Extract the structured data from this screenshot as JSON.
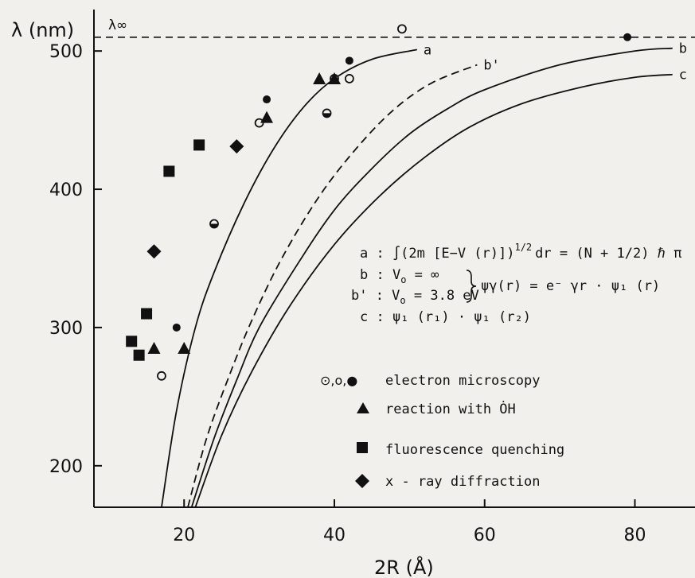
{
  "chart_data": {
    "type": "scatter",
    "xlabel": "2R (Å)",
    "ylabel": "λ (nm)",
    "xlim": [
      8,
      88
    ],
    "ylim": [
      170,
      530
    ],
    "x_ticks": [
      20,
      40,
      60,
      80
    ],
    "y_ticks": [
      200,
      300,
      400,
      500
    ],
    "asymptote": {
      "label": "λ∞",
      "value": 510
    },
    "curves": [
      {
        "label": "a",
        "style": "solid",
        "points": [
          [
            17,
            170
          ],
          [
            19,
            240
          ],
          [
            21.5,
            300
          ],
          [
            24,
            340
          ],
          [
            28,
            390
          ],
          [
            32,
            430
          ],
          [
            36,
            460
          ],
          [
            40,
            480
          ],
          [
            45,
            494
          ],
          [
            51,
            501
          ]
        ]
      },
      {
        "label": "b",
        "style": "solid",
        "points": [
          [
            21,
            170
          ],
          [
            24,
            220
          ],
          [
            27,
            262
          ],
          [
            30,
            300
          ],
          [
            35,
            345
          ],
          [
            40,
            385
          ],
          [
            45,
            415
          ],
          [
            50,
            440
          ],
          [
            55,
            458
          ],
          [
            60,
            472
          ],
          [
            70,
            490
          ],
          [
            80,
            500
          ],
          [
            85,
            502
          ]
        ]
      },
      {
        "label": "b'",
        "style": "dashed",
        "points": [
          [
            20.5,
            170
          ],
          [
            23,
            220
          ],
          [
            26,
            265
          ],
          [
            29,
            305
          ],
          [
            33,
            350
          ],
          [
            38,
            395
          ],
          [
            43,
            430
          ],
          [
            48,
            458
          ],
          [
            53,
            477
          ],
          [
            59,
            490
          ]
        ]
      },
      {
        "label": "c",
        "style": "solid",
        "points": [
          [
            21.5,
            170
          ],
          [
            25,
            222
          ],
          [
            29,
            268
          ],
          [
            34,
            315
          ],
          [
            40,
            360
          ],
          [
            46,
            395
          ],
          [
            52,
            423
          ],
          [
            58,
            445
          ],
          [
            65,
            462
          ],
          [
            73,
            474
          ],
          [
            80,
            481
          ],
          [
            85,
            483
          ]
        ]
      }
    ],
    "series": [
      {
        "name": "electron microscopy",
        "marker": "circle-mixed",
        "points": [
          [
            17,
            265
          ],
          [
            19,
            300
          ],
          [
            24,
            375
          ],
          [
            30,
            448
          ],
          [
            31,
            465
          ],
          [
            39,
            455
          ],
          [
            42,
            480
          ],
          [
            42,
            493
          ],
          [
            40,
            480
          ],
          [
            49,
            516
          ],
          [
            79,
            510
          ]
        ]
      },
      {
        "name": "reaction with ȮH",
        "marker": "triangle",
        "points": [
          [
            16,
            285
          ],
          [
            20,
            285
          ],
          [
            38,
            480
          ],
          [
            40,
            480
          ],
          [
            31,
            452
          ]
        ]
      },
      {
        "name": "fluorescence quenching",
        "marker": "square",
        "points": [
          [
            13,
            290
          ],
          [
            14,
            280
          ],
          [
            15,
            310
          ],
          [
            18,
            413
          ],
          [
            22,
            432
          ]
        ]
      },
      {
        "name": "x - ray diffraction",
        "marker": "diamond",
        "points": [
          [
            16,
            355
          ],
          [
            27,
            431
          ]
        ]
      }
    ]
  },
  "equations": {
    "a": "a  :  ∫(2m [E−V (r)])",
    "a_exp": "1/2",
    "a_tail": "dr  =  (N + 1/2) ℏ π",
    "b": "b  :  V",
    "b_sub": "o",
    "b_tail": "  =  ∞",
    "bprime": "b'  :  V",
    "bprime_sub": "o",
    "bprime_tail": "  =  3.8 eV",
    "psi": "ψγ(r) = e⁻ γr · ψ₁ (r)",
    "c": "c  :  ψ₁ (r₁) · ψ₁ (r₂)"
  },
  "legend": {
    "symbol_text": "⊙,o,●",
    "electron": "electron microscopy",
    "reaction": "reaction with ȮH",
    "fluorescence": "fluorescence quenching",
    "xray": "x - ray diffraction"
  },
  "colors": {
    "ink": "#111111",
    "paper": "#f1f0ec"
  }
}
